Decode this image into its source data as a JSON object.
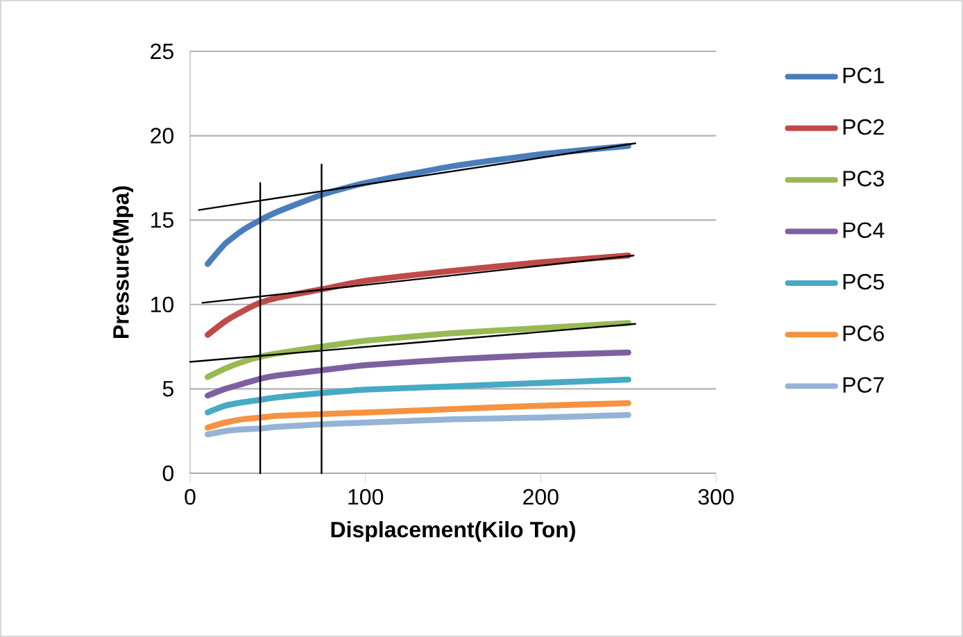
{
  "chart_data": {
    "type": "line",
    "xlabel": "Displacement(Kilo Ton)",
    "ylabel": "Pressure(Mpa)",
    "x": [
      10,
      20,
      30,
      40,
      50,
      75,
      100,
      150,
      200,
      250
    ],
    "xlim": [
      0,
      300
    ],
    "xticks": [
      0,
      100,
      200,
      300
    ],
    "ylim": [
      0,
      25
    ],
    "yticks": [
      0,
      5,
      10,
      15,
      20,
      25
    ],
    "grid": "y",
    "legend": "right",
    "marker": "none",
    "line_style": "solid",
    "series": [
      {
        "name": "PC1",
        "color": "#4a7ebb",
        "values": [
          12.4,
          13.6,
          14.4,
          15.0,
          15.5,
          16.5,
          17.2,
          18.2,
          18.9,
          19.4
        ]
      },
      {
        "name": "PC2",
        "color": "#be4b48",
        "values": [
          8.2,
          9.0,
          9.6,
          10.1,
          10.4,
          10.9,
          11.4,
          12.0,
          12.5,
          12.9
        ]
      },
      {
        "name": "PC3",
        "color": "#98b954",
        "values": [
          5.7,
          6.2,
          6.6,
          6.9,
          7.1,
          7.5,
          7.85,
          8.3,
          8.6,
          8.9
        ]
      },
      {
        "name": "PC4",
        "color": "#7d60a0",
        "values": [
          4.6,
          5.0,
          5.3,
          5.6,
          5.8,
          6.1,
          6.4,
          6.75,
          7.0,
          7.15
        ]
      },
      {
        "name": "PC5",
        "color": "#46aac5",
        "values": [
          3.6,
          4.0,
          4.2,
          4.35,
          4.5,
          4.75,
          4.95,
          5.15,
          5.35,
          5.55
        ]
      },
      {
        "name": "PC6",
        "color": "#f69240",
        "values": [
          2.7,
          3.0,
          3.2,
          3.3,
          3.4,
          3.5,
          3.6,
          3.8,
          4.0,
          4.15
        ]
      },
      {
        "name": "PC7",
        "color": "#94b3d6",
        "values": [
          2.3,
          2.5,
          2.6,
          2.65,
          2.75,
          2.9,
          3.0,
          3.2,
          3.3,
          3.45
        ]
      },
      {
        "color": "#000000",
        "x": [
          5,
          254
        ],
        "values": [
          15.6,
          19.55
        ]
      },
      {
        "color": "#000000",
        "x": [
          7,
          253
        ],
        "values": [
          10.1,
          12.9
        ]
      },
      {
        "color": "#000000",
        "x": [
          0,
          254
        ],
        "values": [
          6.6,
          8.85
        ]
      },
      {
        "color": "#000000",
        "x": [
          40,
          40
        ],
        "values": [
          0,
          17.2
        ]
      },
      {
        "color": "#000000",
        "x": [
          75,
          75
        ],
        "values": [
          0,
          18.3
        ]
      }
    ]
  }
}
